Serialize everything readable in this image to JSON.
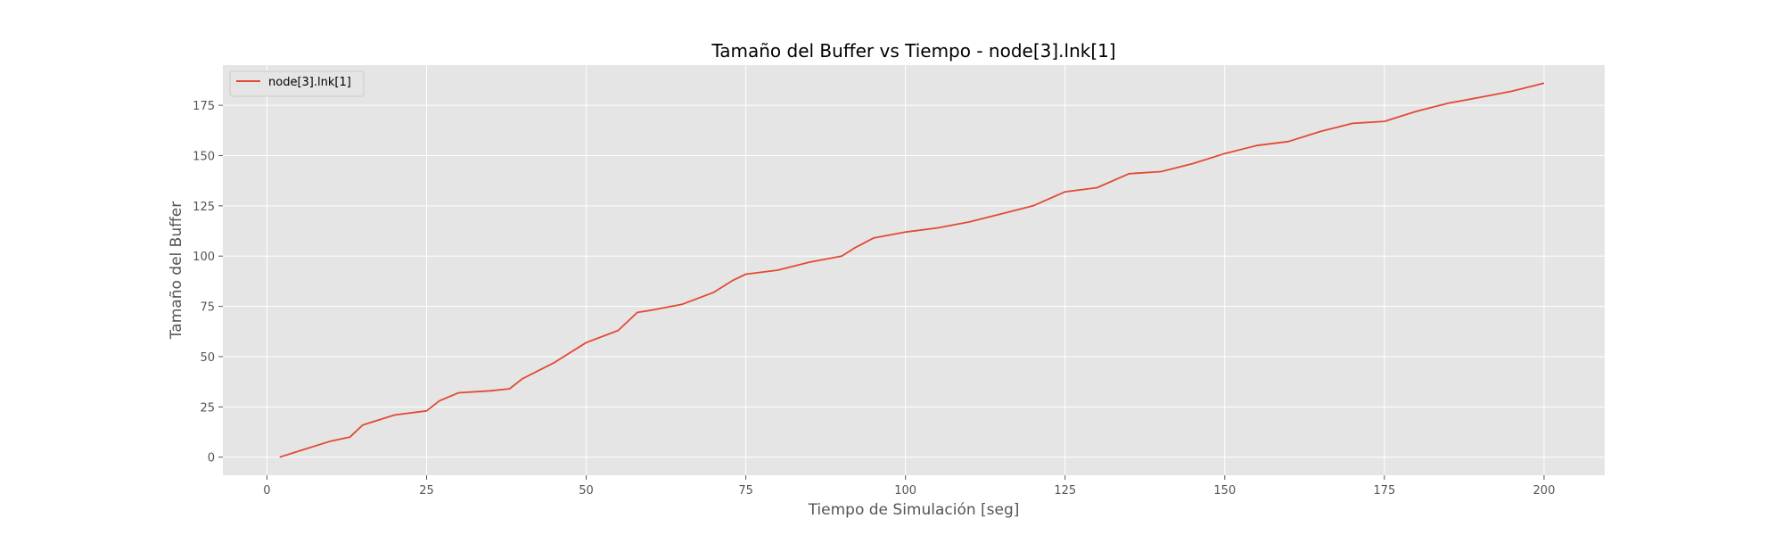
{
  "chart_data": {
    "type": "line",
    "title": "Tamaño del Buffer vs Tiempo - node[3].lnk[1]",
    "xlabel": "Tiempo de Simulación [seg]",
    "ylabel": "Tamaño del Buffer",
    "xlim": [
      -6.9,
      209.5
    ],
    "ylim": [
      -9,
      195
    ],
    "xticks": [
      0,
      25,
      50,
      75,
      100,
      125,
      150,
      175,
      200
    ],
    "yticks": [
      0,
      25,
      50,
      75,
      100,
      125,
      150,
      175
    ],
    "grid": true,
    "legend_position": "top-left",
    "series": [
      {
        "name": "node[3].lnk[1]",
        "color": "#e24a33",
        "x": [
          2,
          5,
          10,
          13,
          15,
          20,
          25,
          27,
          30,
          35,
          38,
          40,
          45,
          50,
          55,
          58,
          60,
          65,
          70,
          73,
          75,
          80,
          85,
          90,
          92,
          95,
          100,
          105,
          110,
          115,
          120,
          125,
          130,
          135,
          140,
          145,
          150,
          155,
          160,
          165,
          170,
          175,
          180,
          185,
          190,
          195,
          200
        ],
        "y": [
          0,
          3,
          8,
          10,
          16,
          21,
          23,
          28,
          32,
          33,
          34,
          39,
          47,
          57,
          63,
          72,
          73,
          76,
          82,
          88,
          91,
          93,
          97,
          100,
          104,
          109,
          112,
          114,
          117,
          121,
          125,
          132,
          134,
          141,
          142,
          146,
          151,
          155,
          157,
          162,
          166,
          167,
          172,
          176,
          179,
          182,
          186
        ]
      }
    ]
  }
}
